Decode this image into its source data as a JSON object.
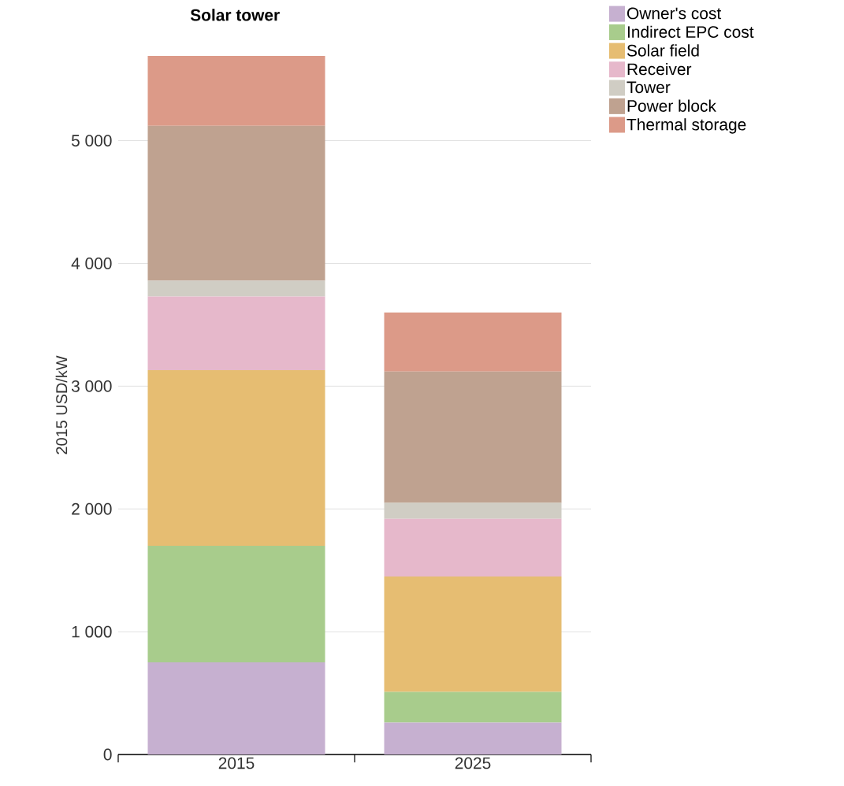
{
  "chart_data": {
    "type": "bar",
    "title": "Solar tower",
    "ylabel": "2015 USD/kW",
    "categories": [
      "2015",
      "2025"
    ],
    "stacked": true,
    "grid": "y",
    "legend": "top right",
    "ylim": [
      0,
      5690
    ],
    "yticks": [
      {
        "value": 0,
        "label": "0"
      },
      {
        "value": 1000,
        "label": "1 000"
      },
      {
        "value": 2000,
        "label": "2 000"
      },
      {
        "value": 3000,
        "label": "3 000"
      },
      {
        "value": 4000,
        "label": "4 000"
      },
      {
        "value": 5000,
        "label": "5 000"
      }
    ],
    "series": [
      {
        "name": "Owner's cost",
        "color": "#c6b0d0",
        "values": [
          750,
          260
        ]
      },
      {
        "name": "Indirect EPC cost",
        "color": "#a8cc8c",
        "values": [
          950,
          250
        ]
      },
      {
        "name": "Solar field",
        "color": "#e6bd72",
        "values": [
          1430,
          940
        ]
      },
      {
        "name": "Receiver",
        "color": "#e6b8cb",
        "values": [
          600,
          470
        ]
      },
      {
        "name": "Tower",
        "color": "#d0cdc4",
        "values": [
          130,
          130
        ]
      },
      {
        "name": "Power block",
        "color": "#bfa290",
        "values": [
          1260,
          1070
        ]
      },
      {
        "name": "Thermal storage",
        "color": "#dc9a88",
        "values": [
          570,
          480
        ]
      }
    ]
  }
}
